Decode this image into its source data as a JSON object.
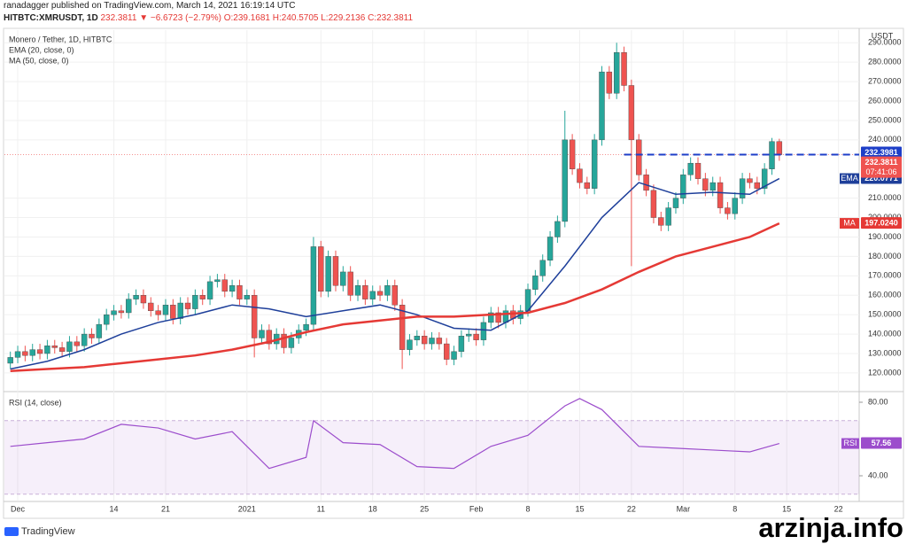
{
  "header": {
    "line1": "ranadagger published on TradingView.com, March 14, 2021 16:19:14 UTC",
    "symbol": "HITBTC:XMRUSDT, 1D",
    "price": "232.3811",
    "change": "▼ −6.6723 (−2.79%)",
    "ohlc": "O:239.1681 H:240.5705 L:229.2136 C:232.3811"
  },
  "chart_data": [
    {
      "type": "candlestick",
      "title": "Monero / Tether, 1D, HITBTC",
      "unit": "USDT",
      "xlim": [
        -0.8,
        114.8
      ],
      "xticks": [
        {
          "value": 1,
          "label": "Dec"
        },
        14,
        21,
        {
          "value": 32,
          "label": "2021"
        },
        {
          "value": 42,
          "label": "11"
        },
        {
          "value": 49,
          "label": "18"
        },
        {
          "value": 56,
          "label": "25"
        },
        {
          "value": 63,
          "label": "Feb"
        },
        {
          "value": 70,
          "label": "8"
        },
        {
          "value": 77,
          "label": "15"
        },
        {
          "value": 84,
          "label": "22"
        },
        {
          "value": 91,
          "label": "Mar"
        },
        {
          "value": 98,
          "label": "8"
        },
        {
          "value": 105,
          "label": "15"
        },
        {
          "value": 112,
          "label": "22"
        }
      ],
      "ylim": [
        111.3,
        296.5
      ],
      "yticks": [
        {
          "value": 120,
          "label": "120.0000"
        },
        {
          "value": 130,
          "label": "130.0000"
        },
        {
          "value": 140,
          "label": "140.0000"
        },
        {
          "value": 150,
          "label": "150.0000"
        },
        {
          "value": 160,
          "label": "160.0000"
        },
        {
          "value": 170,
          "label": "170.0000"
        },
        {
          "value": 180,
          "label": "180.0000"
        },
        {
          "value": 190,
          "label": "190.0000"
        },
        {
          "value": 200,
          "label": "200.0000"
        },
        {
          "value": 210,
          "label": "210.0000"
        },
        {
          "value": 240,
          "label": "240.0000"
        },
        {
          "value": 250,
          "label": "250.0000"
        },
        {
          "value": 260,
          "label": "260.0000"
        },
        {
          "value": 270,
          "label": "270.0000"
        },
        {
          "value": 280,
          "label": "280.0000"
        },
        {
          "value": 290,
          "label": "290.0000"
        }
      ],
      "up_color": "#26a69a",
      "down_color": "#ef5350",
      "open": [
        125,
        128,
        131,
        129,
        132,
        130,
        134,
        133,
        131,
        136,
        134,
        140,
        138,
        145,
        150,
        152,
        151,
        158,
        160,
        156,
        152,
        150,
        155,
        148,
        156,
        153,
        160,
        158,
        167,
        168,
        162,
        165,
        158,
        160,
        138,
        142,
        135,
        140,
        133,
        138,
        142,
        145,
        185,
        162,
        180,
        165,
        172,
        160,
        165,
        158,
        162,
        160,
        165,
        155,
        132,
        137,
        139,
        135,
        138,
        135,
        127,
        131,
        139,
        140,
        137,
        146,
        151,
        146,
        152,
        148,
        152,
        163,
        170,
        178,
        190,
        198,
        240,
        225,
        218,
        215,
        240,
        275,
        264,
        285,
        268,
        240,
        222,
        214,
        200,
        196,
        205,
        210,
        222,
        228,
        220,
        214,
        218,
        205,
        202,
        210,
        220,
        218,
        215,
        225,
        239.1681
      ],
      "high": [
        131,
        134,
        134,
        135,
        135,
        137,
        137,
        136,
        139,
        139,
        143,
        143,
        148,
        153,
        155,
        155,
        161,
        163,
        163,
        159,
        155,
        158,
        158,
        159,
        159,
        163,
        163,
        170,
        171,
        171,
        168,
        168,
        163,
        163,
        145,
        145,
        143,
        143,
        141,
        145,
        148,
        190,
        188,
        183,
        183,
        175,
        175,
        168,
        168,
        165,
        165,
        168,
        168,
        158,
        140,
        142,
        142,
        141,
        141,
        138,
        134,
        142,
        143,
        143,
        149,
        154,
        154,
        155,
        155,
        155,
        166,
        173,
        181,
        193,
        201,
        255,
        243,
        228,
        221,
        243,
        278,
        278,
        290,
        288,
        271,
        243,
        225,
        217,
        203,
        208,
        213,
        225,
        231,
        231,
        223,
        221,
        221,
        208,
        213,
        223,
        223,
        221,
        228,
        241,
        240.5705
      ],
      "low": [
        122,
        125,
        126,
        126,
        127,
        127,
        130,
        128,
        128,
        131,
        131,
        135,
        135,
        142,
        147,
        148,
        148,
        155,
        153,
        149,
        147,
        147,
        145,
        145,
        150,
        150,
        155,
        155,
        164,
        159,
        159,
        155,
        155,
        128,
        135,
        132,
        132,
        130,
        130,
        135,
        139,
        142,
        159,
        159,
        162,
        162,
        157,
        157,
        155,
        155,
        157,
        157,
        152,
        122,
        129,
        134,
        132,
        132,
        132,
        124,
        124,
        128,
        136,
        134,
        134,
        143,
        143,
        143,
        145,
        145,
        149,
        160,
        167,
        175,
        187,
        195,
        222,
        215,
        212,
        212,
        237,
        261,
        261,
        265,
        175,
        219,
        211,
        197,
        193,
        193,
        202,
        207,
        219,
        217,
        211,
        211,
        202,
        199,
        199,
        207,
        215,
        212,
        212,
        222,
        229.2136
      ],
      "close": [
        128,
        131,
        129,
        132,
        130,
        134,
        133,
        131,
        136,
        134,
        140,
        138,
        145,
        150,
        152,
        151,
        158,
        160,
        156,
        152,
        150,
        155,
        148,
        156,
        153,
        160,
        158,
        167,
        168,
        162,
        165,
        158,
        160,
        138,
        142,
        135,
        140,
        133,
        138,
        142,
        145,
        185,
        162,
        180,
        165,
        172,
        160,
        165,
        158,
        162,
        160,
        165,
        155,
        132,
        137,
        139,
        135,
        138,
        135,
        127,
        131,
        139,
        140,
        137,
        146,
        151,
        146,
        152,
        148,
        152,
        163,
        170,
        178,
        190,
        198,
        240,
        225,
        218,
        215,
        240,
        275,
        264,
        285,
        268,
        240,
        222,
        214,
        200,
        196,
        205,
        210,
        222,
        228,
        220,
        214,
        218,
        205,
        202,
        210,
        220,
        218,
        215,
        225,
        239.1681,
        232.3811
      ],
      "overlays": [
        {
          "name": "EMA (20, close, 0)",
          "tag": "EMA",
          "color": "#1e3f9a",
          "x": [
            0,
            5,
            10,
            15,
            20,
            25,
            30,
            35,
            40,
            45,
            50,
            55,
            60,
            65,
            70,
            75,
            80,
            85,
            90,
            95,
            100,
            104
          ],
          "values": [
            122,
            126,
            132,
            140,
            146,
            150,
            155,
            153,
            149,
            152,
            155,
            150,
            143,
            142,
            152,
            175,
            200,
            218,
            212,
            213,
            212,
            220.0771
          ],
          "last": {
            "value": 220.0771,
            "label": "220.0771"
          }
        },
        {
          "name": "MA (50, close, 0)",
          "tag": "MA",
          "color": "#e53935",
          "x": [
            0,
            5,
            10,
            15,
            20,
            25,
            30,
            35,
            40,
            45,
            50,
            55,
            60,
            65,
            70,
            75,
            80,
            85,
            90,
            95,
            100,
            104
          ],
          "values": [
            121,
            122,
            123,
            125,
            127,
            129,
            132,
            136,
            141,
            145,
            147,
            149,
            149,
            150,
            151,
            156,
            163,
            172,
            180,
            185,
            190,
            197.024
          ],
          "last": {
            "value": 197.024,
            "label": "197.0240"
          }
        }
      ],
      "hline": {
        "value": 232.3981,
        "color": "#1e3fc8"
      },
      "last_price": {
        "value": 232.3811,
        "countdown": "07:41:06"
      }
    },
    {
      "type": "line",
      "title": "RSI (14, close)",
      "tag": "RSI",
      "color": "#9c4dcc",
      "xlim": [
        -0.8,
        114.8
      ],
      "ylim": [
        26.5,
        85.3
      ],
      "yticks": [
        {
          "value": 80,
          "label": "80.00"
        },
        {
          "value": 40,
          "label": "40.00"
        }
      ],
      "band": [
        30,
        70
      ],
      "x": [
        0,
        5,
        10,
        15,
        20,
        25,
        30,
        35,
        40,
        41,
        45,
        50,
        55,
        60,
        65,
        70,
        75,
        77,
        80,
        85,
        90,
        95,
        100,
        104
      ],
      "values": [
        56,
        58,
        60,
        68,
        66,
        60,
        64,
        44,
        50,
        70,
        58,
        57,
        45,
        44,
        56,
        62,
        78,
        82,
        76,
        56,
        55,
        54,
        53,
        57.56
      ],
      "last": 57.56
    }
  ],
  "footer": {
    "brand": "TradingView",
    "watermark": "arzinja.info"
  }
}
